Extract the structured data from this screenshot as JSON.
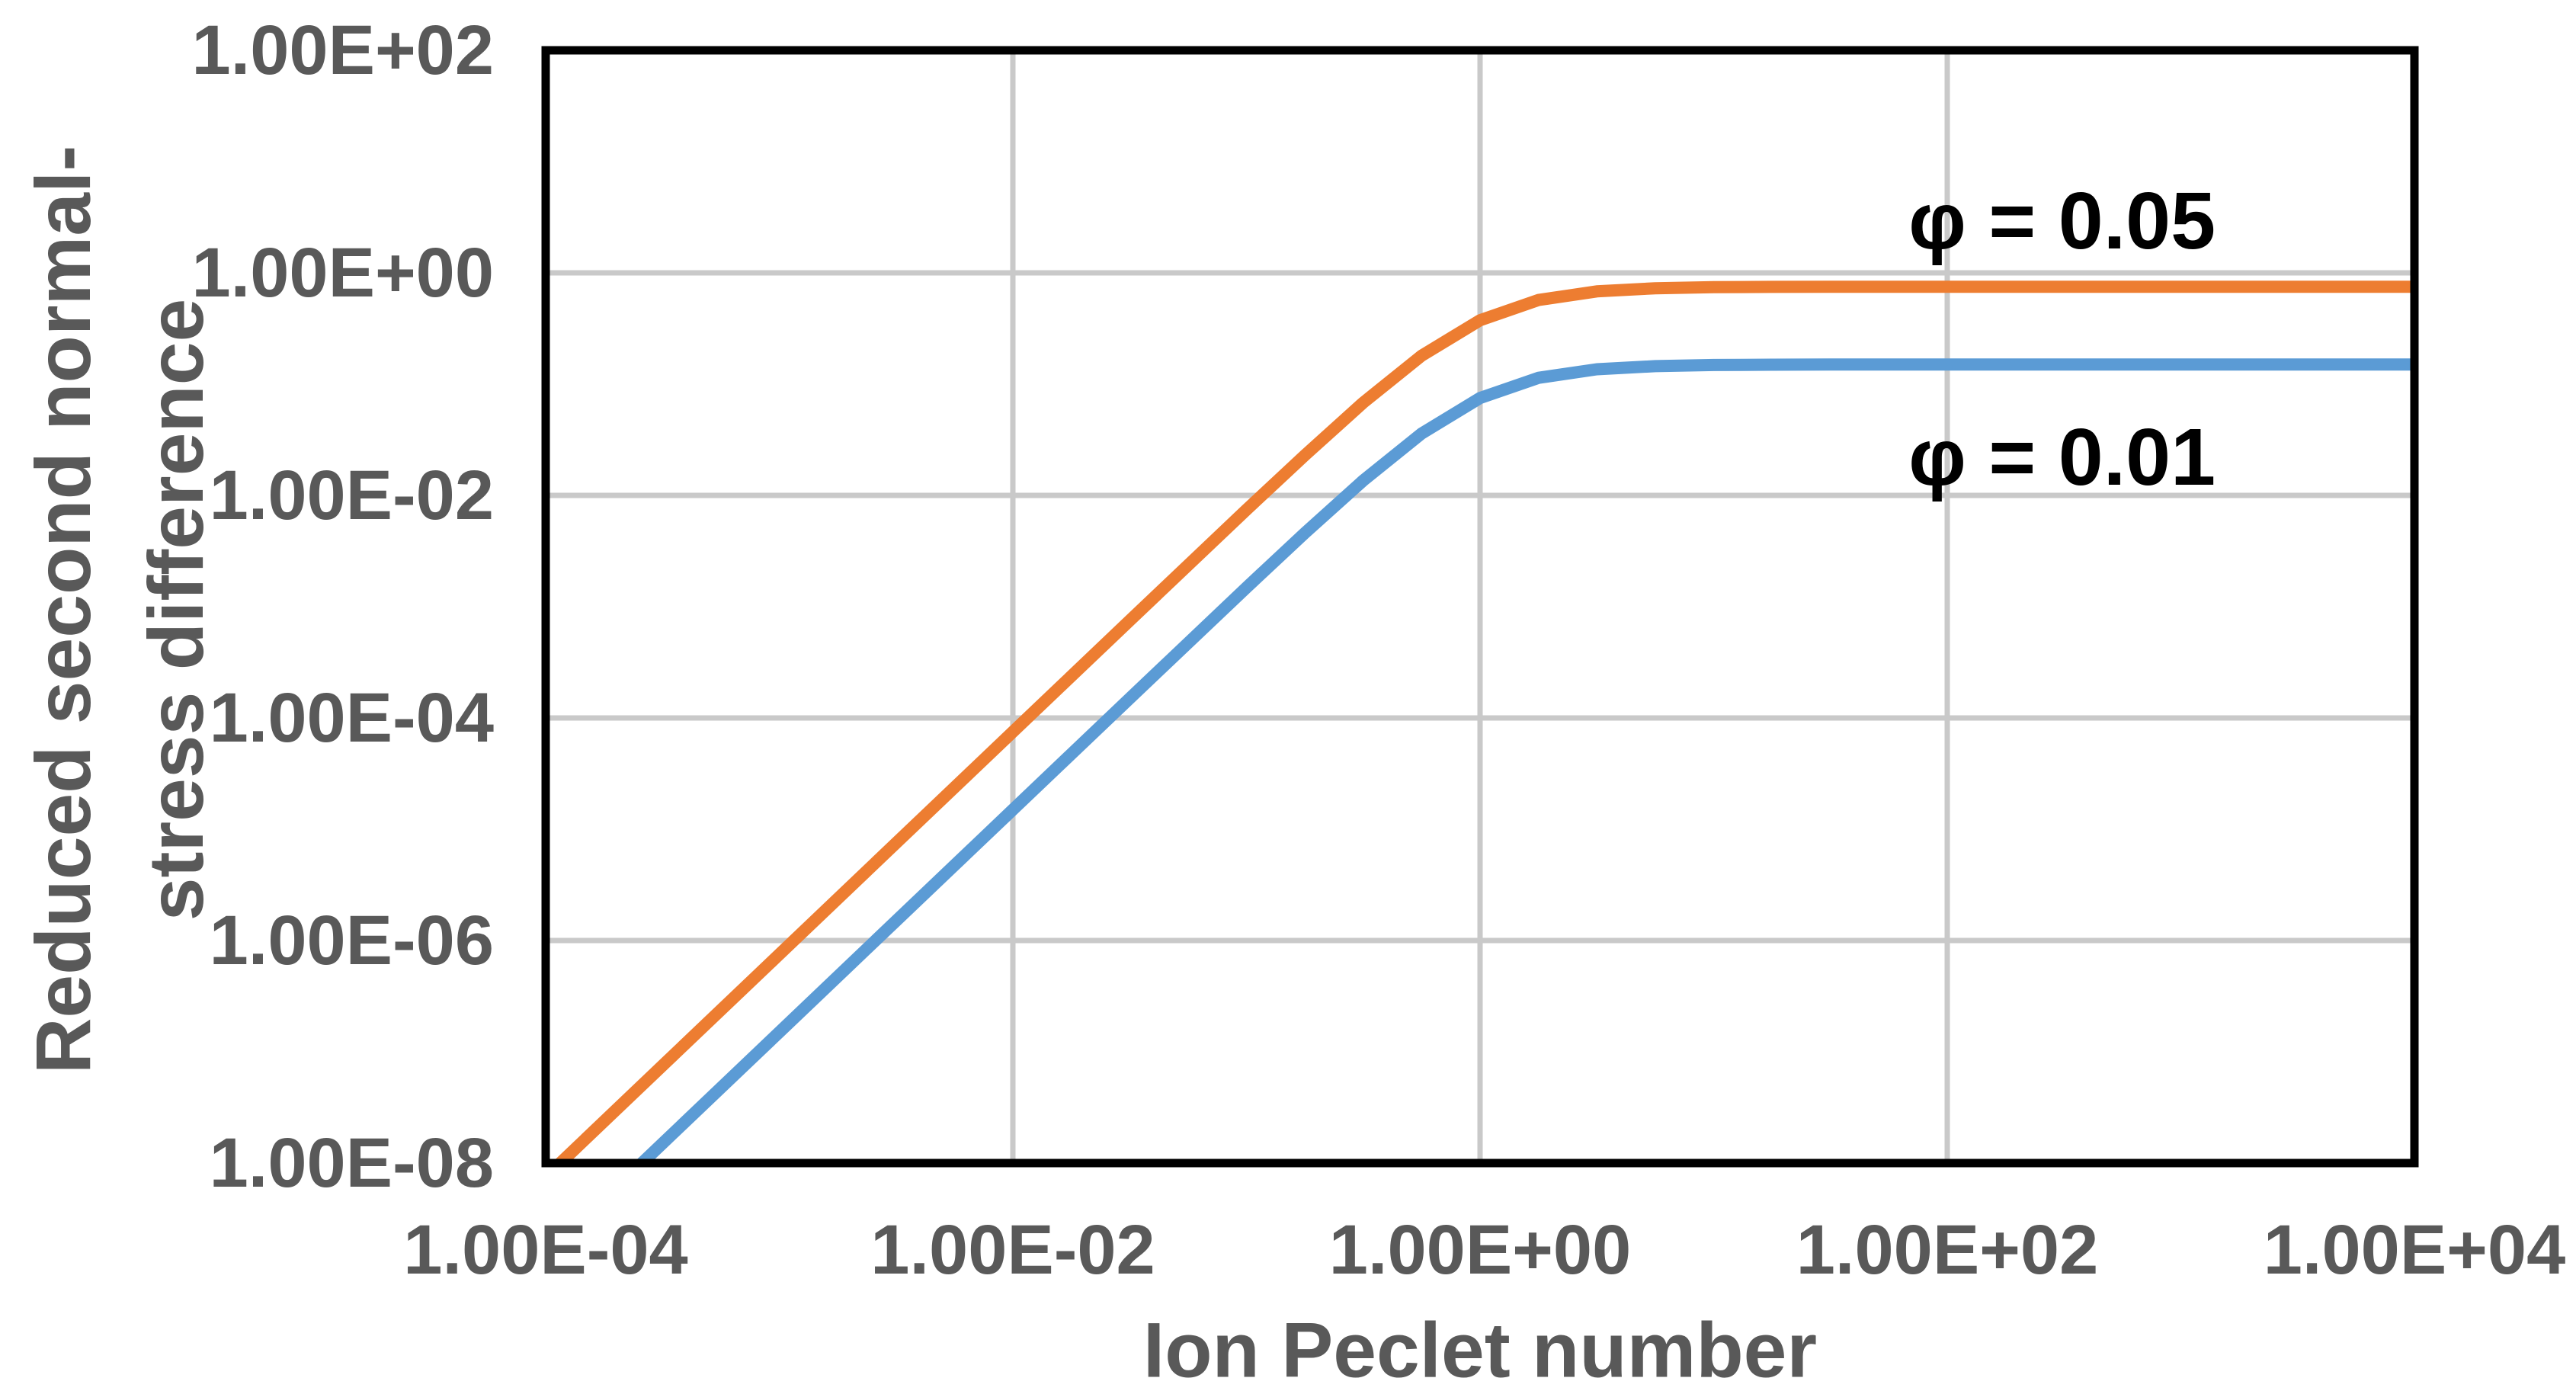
{
  "page": {
    "background": "#FFFFFF"
  },
  "chart_data": {
    "type": "line",
    "title": "",
    "xlabel": "Ion Peclet number",
    "ylabel": "Reduced second normal-stress difference",
    "ylabel_line1": "Reduced second normal-",
    "ylabel_line2": "stress difference",
    "x_scale": "log",
    "y_scale": "log",
    "xlim": [
      0.0001,
      10000
    ],
    "ylim": [
      1e-08,
      100
    ],
    "grid": true,
    "legend_position": "none",
    "x_ticks": [
      {
        "label": "1.00E-04",
        "value": 0.0001
      },
      {
        "label": "1.00E-02",
        "value": 0.01
      },
      {
        "label": "1.00E+00",
        "value": 1
      },
      {
        "label": "1.00E+02",
        "value": 100
      },
      {
        "label": "1.00E+04",
        "value": 10000
      }
    ],
    "y_ticks": [
      {
        "label": "1.00E+02",
        "value": 100
      },
      {
        "label": "1.00E+00",
        "value": 1
      },
      {
        "label": "1.00E-02",
        "value": 0.01
      },
      {
        "label": "1.00E-04",
        "value": 0.0001
      },
      {
        "label": "1.00E-06",
        "value": 1e-06
      },
      {
        "label": "1.00E-08",
        "value": 1e-08
      }
    ],
    "series": [
      {
        "name": "φ = 0.05",
        "color": "#ED7D31",
        "plateau": 0.75,
        "points": [
          [
            0.0001,
            7.5e-09
          ],
          [
            0.000316,
            7.5e-08
          ],
          [
            0.001,
            7.5e-07
          ],
          [
            0.00316,
            7.5e-06
          ],
          [
            0.01,
            7.5e-05
          ],
          [
            0.0316,
            0.000749
          ],
          [
            0.1,
            0.00743
          ],
          [
            0.178,
            0.023
          ],
          [
            0.316,
            0.0682
          ],
          [
            0.562,
            0.18
          ],
          [
            1.0,
            0.375
          ],
          [
            1.78,
            0.57
          ],
          [
            3.16,
            0.682
          ],
          [
            5.62,
            0.727
          ],
          [
            10,
            0.743
          ],
          [
            17.8,
            0.7477
          ],
          [
            31.6,
            0.7493
          ],
          [
            100,
            0.7499
          ],
          [
            1000,
            0.75
          ],
          [
            10000,
            0.75
          ]
        ]
      },
      {
        "name": "φ = 0.01",
        "color": "#5B9BD5",
        "plateau": 0.15,
        "points": [
          [
            0.0001,
            1.5e-09
          ],
          [
            0.000316,
            1.5e-08
          ],
          [
            0.001,
            1.5e-07
          ],
          [
            0.00316,
            1.5e-06
          ],
          [
            0.01,
            1.5e-05
          ],
          [
            0.0316,
            0.0001498
          ],
          [
            0.1,
            0.001485
          ],
          [
            0.178,
            0.0046
          ],
          [
            0.316,
            0.0136
          ],
          [
            0.562,
            0.036
          ],
          [
            1.0,
            0.075
          ],
          [
            1.78,
            0.114
          ],
          [
            3.16,
            0.136
          ],
          [
            5.62,
            0.145
          ],
          [
            10,
            0.1485
          ],
          [
            17.8,
            0.1495
          ],
          [
            31.6,
            0.1499
          ],
          [
            100,
            0.15
          ],
          [
            1000,
            0.15
          ],
          [
            10000,
            0.15
          ]
        ]
      }
    ],
    "annotations": [
      {
        "text": "φ = 0.05",
        "pe": 310,
        "value": 2.9
      },
      {
        "text": "φ = 0.01",
        "pe": 310,
        "value": 0.022
      }
    ],
    "colors": {
      "axis_text": "#595959",
      "annotation_text": "#000000",
      "gridline": "#C9C9C9",
      "border": "#000000",
      "background": "#FFFFFF"
    }
  }
}
